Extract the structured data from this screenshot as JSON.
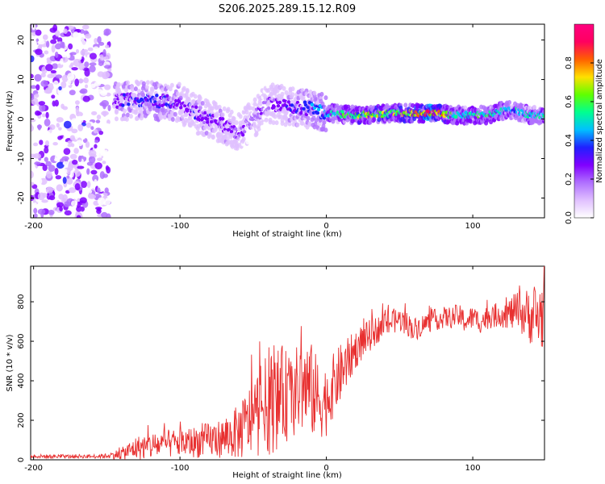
{
  "title": "S206.2025.289.15.12.R09",
  "chart_data": [
    {
      "type": "heatmap",
      "title": "S206.2025.289.15.12.R09",
      "xlabel": "Height of straight line (km)",
      "ylabel": "Frequency (Hz)",
      "xlim": [
        -202,
        149
      ],
      "ylim": [
        -25,
        24
      ],
      "xticks": [
        -200,
        -100,
        0,
        100
      ],
      "yticks": [
        -20,
        -10,
        0,
        10,
        20
      ],
      "xtick_labels": [
        "-200",
        "-100",
        "0",
        "100"
      ],
      "ytick_labels": [
        "-20",
        "-10",
        "0",
        "10",
        "20"
      ],
      "colorbar": {
        "label": "Normalized spectral amplitude",
        "range": [
          0,
          1
        ],
        "ticks": [
          0.0,
          0.2,
          0.4,
          0.6,
          0.8
        ],
        "tick_labels": [
          "0.0",
          "0.2",
          "0.4",
          "0.6",
          "0.8"
        ],
        "colors": [
          "#ffffff",
          "#e0c0ff",
          "#b070ff",
          "#8000ff",
          "#2020ff",
          "#00c0ff",
          "#00ff90",
          "#60ff00",
          "#ffe000",
          "#ff6000",
          "#ff0060",
          "#ff0080"
        ]
      },
      "ridge": [
        {
          "x": -145,
          "y": 4.5,
          "amp": 0.35
        },
        {
          "x": -130,
          "y": 4.8,
          "amp": 0.4
        },
        {
          "x": -115,
          "y": 4.6,
          "amp": 0.45
        },
        {
          "x": -100,
          "y": 4.0,
          "amp": 0.35
        },
        {
          "x": -85,
          "y": 0.5,
          "amp": 0.35
        },
        {
          "x": -70,
          "y": -1.5,
          "amp": 0.35
        },
        {
          "x": -60,
          "y": -3.5,
          "amp": 0.3
        },
        {
          "x": -50,
          "y": 0.0,
          "amp": 0.25
        },
        {
          "x": -40,
          "y": 4.0,
          "amp": 0.3
        },
        {
          "x": -30,
          "y": 3.5,
          "amp": 0.35
        },
        {
          "x": -20,
          "y": 3.0,
          "amp": 0.4
        },
        {
          "x": -10,
          "y": 2.5,
          "amp": 0.45
        },
        {
          "x": 0,
          "y": 1.5,
          "amp": 0.55
        },
        {
          "x": 20,
          "y": 1.0,
          "amp": 0.7
        },
        {
          "x": 50,
          "y": 1.5,
          "amp": 0.75
        },
        {
          "x": 70,
          "y": 1.5,
          "amp": 0.95
        },
        {
          "x": 90,
          "y": 1.0,
          "amp": 0.6
        },
        {
          "x": 110,
          "y": 1.0,
          "amp": 0.65
        },
        {
          "x": 125,
          "y": 2.5,
          "amp": 0.55
        },
        {
          "x": 140,
          "y": 1.0,
          "amp": 0.6
        }
      ],
      "noise_region_km": [
        -202,
        -148
      ]
    },
    {
      "type": "line",
      "xlabel": "Height of straight line (km)",
      "ylabel": "SNR (10 * v/v)",
      "xlim": [
        -202,
        149
      ],
      "ylim": [
        0,
        980
      ],
      "xticks": [
        -200,
        -100,
        0,
        100
      ],
      "yticks": [
        0,
        200,
        400,
        600,
        800
      ],
      "xtick_labels": [
        "-200",
        "-100",
        "0",
        "100"
      ],
      "ytick_labels": [
        "0",
        "200",
        "400",
        "600",
        "800"
      ],
      "series": [
        {
          "name": "SNR",
          "color": "#e83030",
          "x": [
            -202,
            -190,
            -180,
            -170,
            -160,
            -150,
            -140,
            -130,
            -120,
            -110,
            -100,
            -90,
            -80,
            -70,
            -60,
            -55,
            -50,
            -45,
            -40,
            -35,
            -30,
            -25,
            -20,
            -15,
            -10,
            -5,
            0,
            5,
            10,
            15,
            20,
            25,
            30,
            35,
            40,
            45,
            50,
            55,
            60,
            65,
            70,
            75,
            80,
            85,
            90,
            95,
            100,
            105,
            110,
            115,
            120,
            125,
            130,
            135,
            140,
            145,
            149
          ],
          "y": [
            18,
            17,
            16,
            18,
            17,
            20,
            30,
            60,
            70,
            80,
            85,
            90,
            100,
            110,
            140,
            170,
            220,
            250,
            280,
            300,
            330,
            320,
            350,
            380,
            350,
            300,
            300,
            380,
            440,
            500,
            560,
            600,
            630,
            660,
            690,
            700,
            710,
            690,
            660,
            680,
            700,
            710,
            720,
            720,
            730,
            700,
            720,
            700,
            720,
            730,
            740,
            740,
            750,
            740,
            730,
            720,
            750
          ],
          "spread": [
            10,
            10,
            10,
            10,
            10,
            12,
            30,
            60,
            70,
            70,
            75,
            80,
            90,
            100,
            140,
            170,
            200,
            230,
            260,
            260,
            250,
            220,
            230,
            250,
            240,
            200,
            180,
            160,
            150,
            120,
            100,
            90,
            80,
            70,
            70,
            65,
            60,
            60,
            60,
            55,
            55,
            55,
            55,
            55,
            60,
            60,
            60,
            60,
            60,
            60,
            70,
            80,
            100,
            120,
            150,
            180,
            200
          ]
        }
      ]
    }
  ]
}
